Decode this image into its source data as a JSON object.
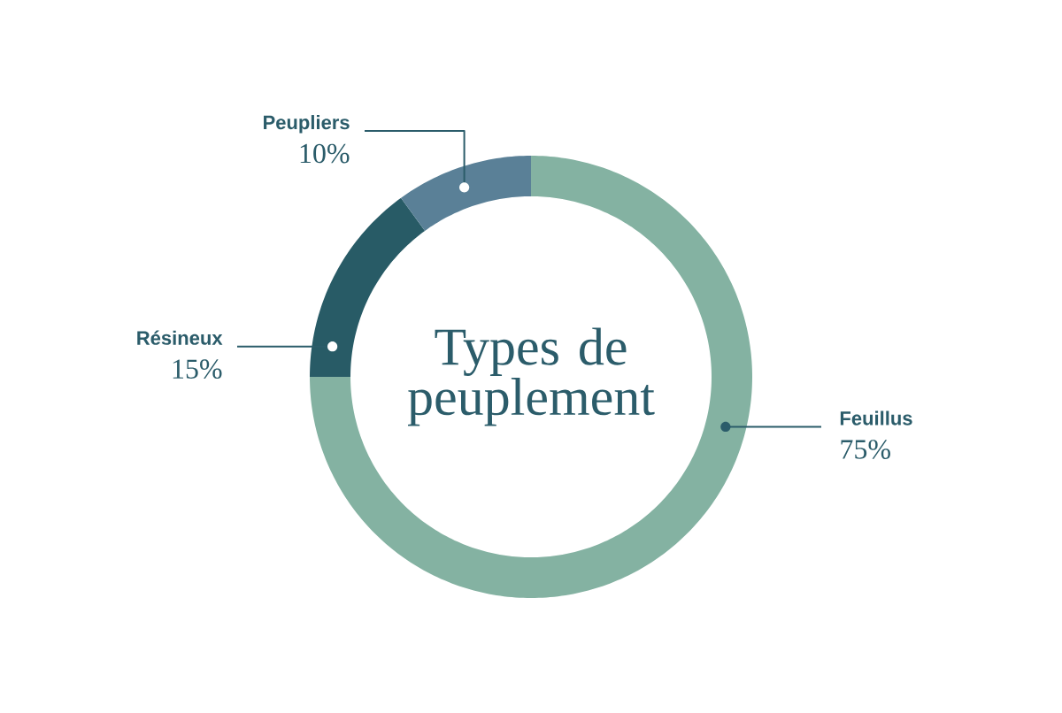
{
  "chart_data": {
    "type": "donut",
    "title": "Types de peuplement",
    "categories": [
      "Feuillus",
      "Résineux",
      "Peupliers"
    ],
    "values": [
      75,
      15,
      10
    ],
    "colors": [
      "#84b2a2",
      "#285b66",
      "#5a8097"
    ],
    "value_labels": [
      "75%",
      "15%",
      "10%"
    ]
  }
}
